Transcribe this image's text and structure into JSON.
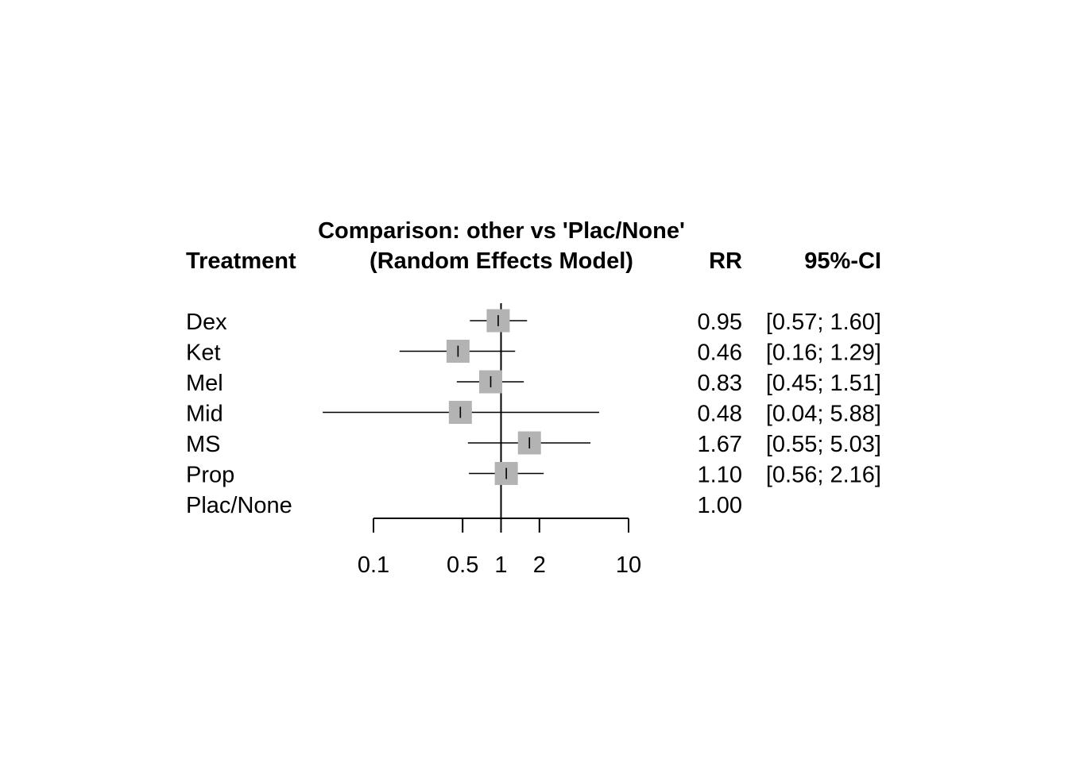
{
  "chart_data": {
    "type": "forest",
    "title_line1": "Comparison: other vs 'Plac/None'",
    "title_line2": "(Random Effects Model)",
    "col_treatment": "Treatment",
    "col_rr": "RR",
    "col_ci": "95%-CI",
    "scale": "log",
    "xlim": [
      0.1,
      10
    ],
    "reference_value": 1,
    "ticks": [
      0.1,
      0.5,
      1,
      2,
      10
    ],
    "tick_labels": [
      "0.1",
      "0.5",
      "1",
      "2",
      "10"
    ],
    "marker_color": "#b3b3b3",
    "rows": [
      {
        "treatment": "Dex",
        "rr": 0.95,
        "lower": 0.57,
        "upper": 1.6,
        "rr_text": "0.95",
        "ci_text": "[0.57; 1.60]"
      },
      {
        "treatment": "Ket",
        "rr": 0.46,
        "lower": 0.16,
        "upper": 1.29,
        "rr_text": "0.46",
        "ci_text": "[0.16; 1.29]"
      },
      {
        "treatment": "Mel",
        "rr": 0.83,
        "lower": 0.45,
        "upper": 1.51,
        "rr_text": "0.83",
        "ci_text": "[0.45; 1.51]"
      },
      {
        "treatment": "Mid",
        "rr": 0.48,
        "lower": 0.04,
        "upper": 5.88,
        "rr_text": "0.48",
        "ci_text": "[0.04; 5.88]"
      },
      {
        "treatment": "MS",
        "rr": 1.67,
        "lower": 0.55,
        "upper": 5.03,
        "rr_text": "1.67",
        "ci_text": "[0.55; 5.03]"
      },
      {
        "treatment": "Prop",
        "rr": 1.1,
        "lower": 0.56,
        "upper": 2.16,
        "rr_text": "1.10",
        "ci_text": "[0.56; 2.16]"
      },
      {
        "treatment": "Plac/None",
        "rr": 1.0,
        "lower": null,
        "upper": null,
        "rr_text": "1.00",
        "ci_text": ""
      }
    ]
  }
}
